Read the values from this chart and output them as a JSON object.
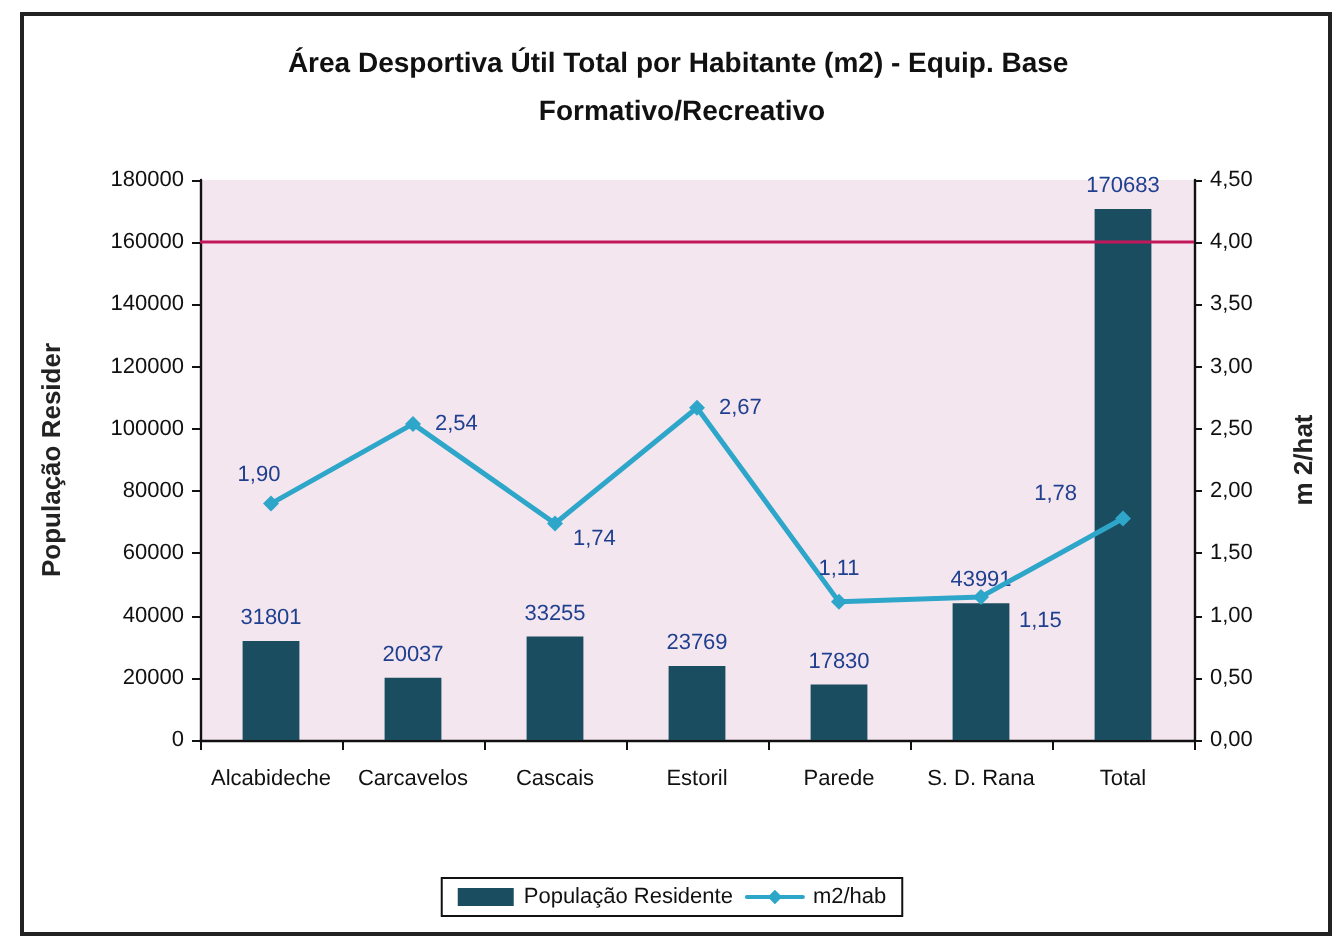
{
  "chart_data": {
    "type": "bar",
    "title": "Área Desportiva Útil Total por Habitante (m2) - Equip. Base Formativo/Recreativo",
    "ylabel": "População Resider",
    "y2label": "m 2/hat",
    "categories": [
      "Alcabideche",
      "Carcavelos",
      "Cascais",
      "Estoril",
      "Parede",
      "S. D. Rana",
      "Total"
    ],
    "series": [
      {
        "name": "População Residente",
        "color": "#1b4d61",
        "values": [
          31801,
          20037,
          33255,
          23769,
          17830,
          43991,
          170683
        ],
        "value_labels": [
          "31801",
          "20037",
          "33255",
          "23769",
          "17830",
          "43991",
          "170683"
        ]
      },
      {
        "name": "m2/hab",
        "type": "line",
        "axis": "y2",
        "color": "#2ea6c9",
        "values": [
          1.9,
          2.54,
          1.74,
          2.67,
          1.11,
          1.15,
          1.78
        ],
        "value_labels": [
          "1,90",
          "2,54",
          "1,74",
          "2,67",
          "1,11",
          "1,15",
          "1,78"
        ]
      }
    ],
    "ylim": [
      0,
      180000
    ],
    "yticks": [
      0,
      20000,
      40000,
      60000,
      80000,
      100000,
      120000,
      140000,
      160000,
      180000
    ],
    "y2lim": [
      0,
      4.5
    ],
    "y2ticks": [
      {
        "value": 0,
        "label": "0,00"
      },
      {
        "value": 0.5,
        "label": "0,50"
      },
      {
        "value": 1,
        "label": "1,00"
      },
      {
        "value": 1.5,
        "label": "1,50"
      },
      {
        "value": 2,
        "label": "2,00"
      },
      {
        "value": 2.5,
        "label": "2,50"
      },
      {
        "value": 3,
        "label": "3,00"
      },
      {
        "value": 3.5,
        "label": "3,50"
      },
      {
        "value": 4,
        "label": "4,00"
      },
      {
        "value": 4.5,
        "label": "4,50"
      }
    ],
    "ref_lines": [
      {
        "axis": "y",
        "value": 160000,
        "color": "#c2185b"
      }
    ],
    "grid": false,
    "legend": "bottom",
    "marker": "diamond",
    "line_style": "solid"
  }
}
